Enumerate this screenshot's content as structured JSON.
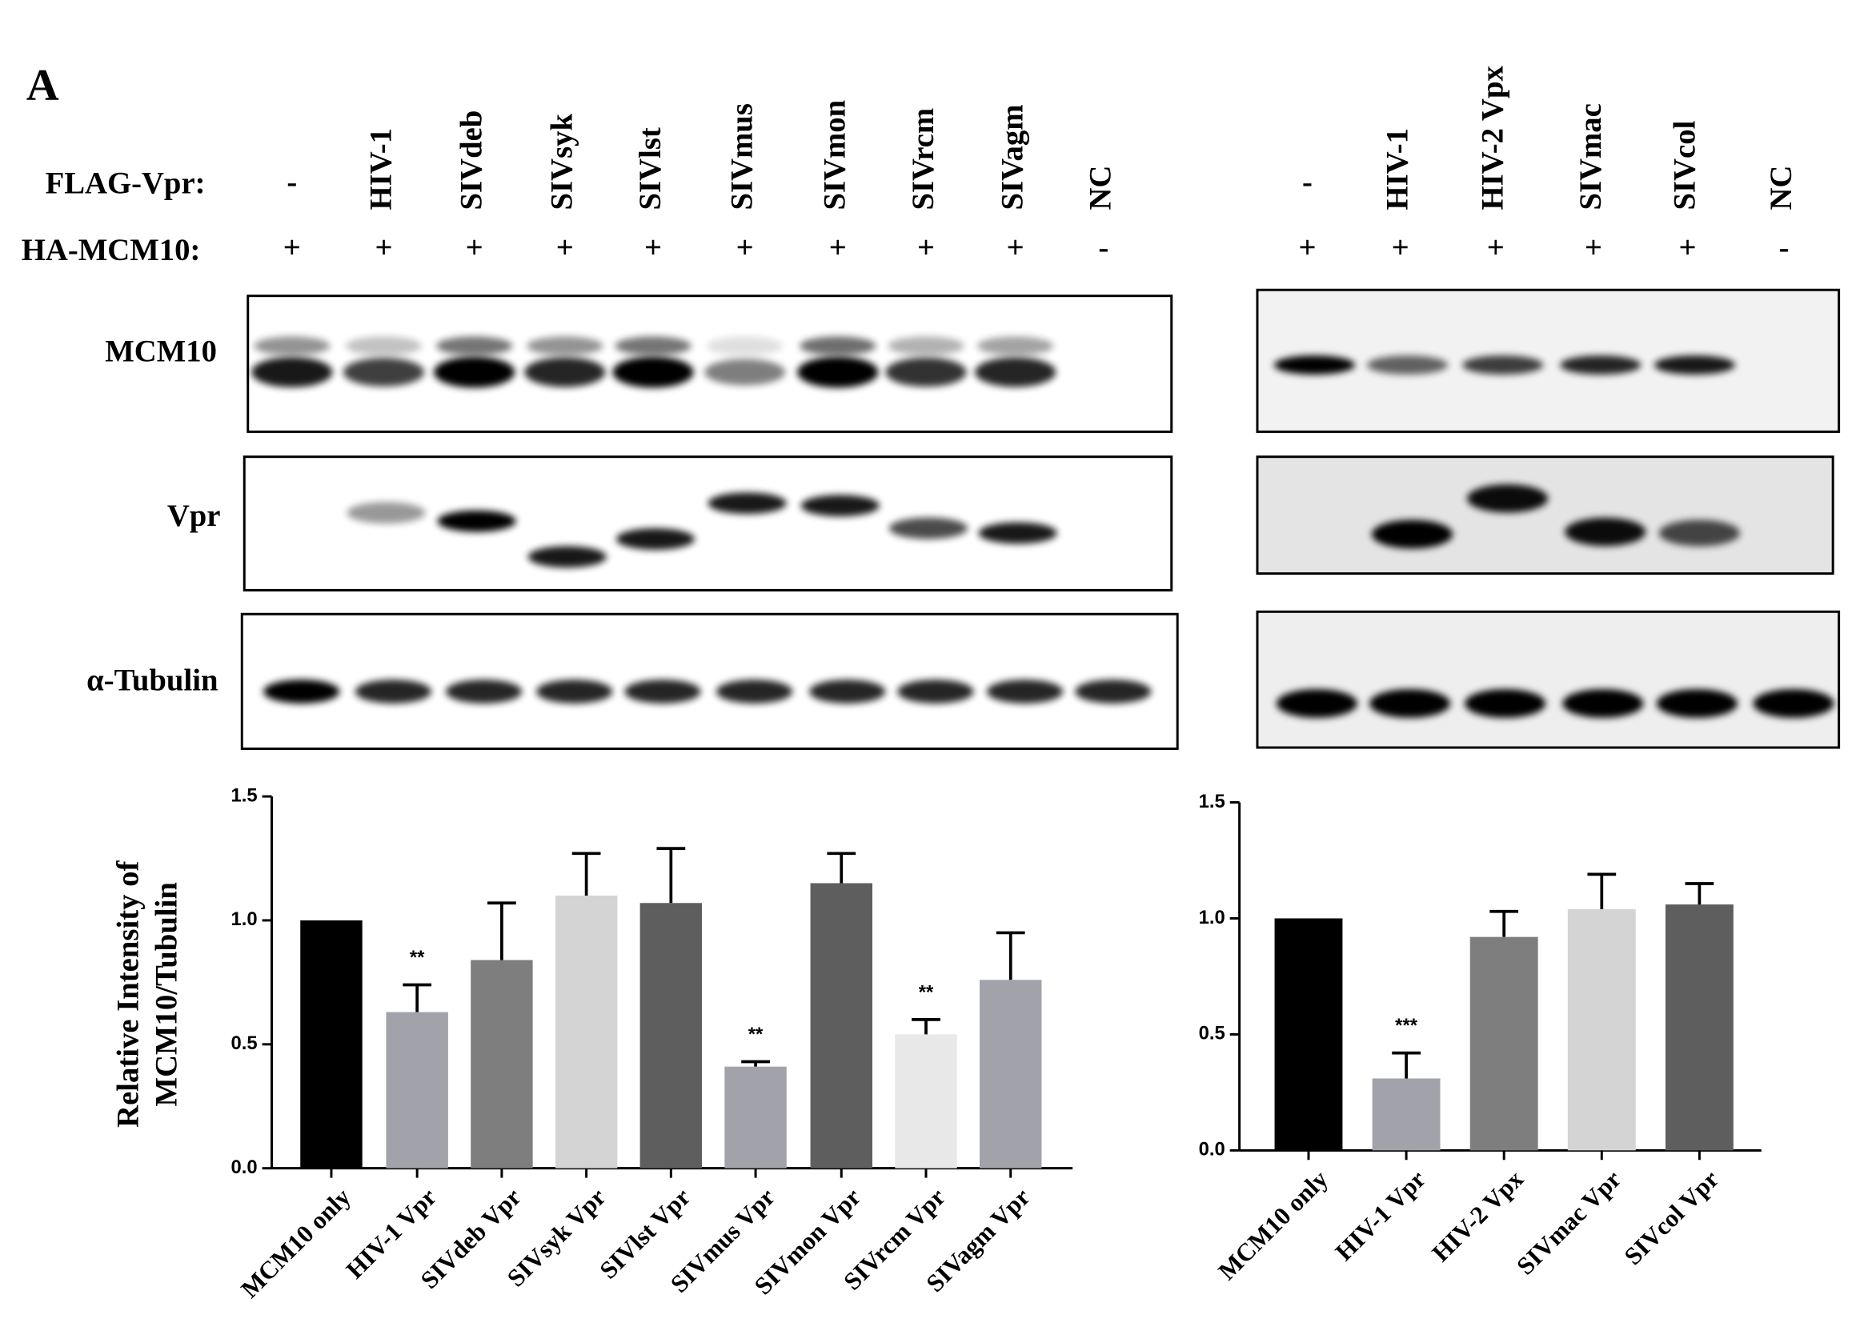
{
  "panel_label": "A",
  "blot": {
    "left": {
      "flag_label": "FLAG-Vpr:",
      "ha_label": "HA-MCM10:",
      "flag_lanes": [
        "-",
        "HIV-1",
        "SIVdeb",
        "SIVsyk",
        "SIVlst",
        "SIVmus",
        "SIVmon",
        "SIVrcm",
        "SIVagm",
        "NC"
      ],
      "ha_lanes": [
        "+",
        "+",
        "+",
        "+",
        "+",
        "+",
        "+",
        "+",
        "+",
        "-"
      ]
    },
    "right": {
      "flag_lanes": [
        "-",
        "HIV-1",
        "HIV-2  Vpx",
        "SIVmac",
        "SIVcol",
        "NC"
      ],
      "ha_lanes": [
        "+",
        "+",
        "+",
        "+",
        "+",
        "-"
      ]
    },
    "row_labels": [
      "MCM10",
      "Vpr",
      "α-Tubulin"
    ]
  },
  "chart_data": [
    {
      "type": "bar",
      "y_label": [
        "Relative Intensity of",
        "MCM10/Tubulin"
      ],
      "categories": [
        "MCM10 only",
        "HIV-1 Vpr",
        "SIVdeb Vpr",
        "SIVsyk Vpr",
        "SIVlst Vpr",
        "SIVmus Vpr",
        "SIVmon Vpr",
        "SIVrcm Vpr",
        "SIVagm Vpr"
      ],
      "values": [
        1.0,
        0.63,
        0.84,
        1.1,
        1.07,
        0.41,
        1.15,
        0.54,
        0.76
      ],
      "errors": [
        null,
        0.11,
        0.23,
        0.17,
        0.22,
        0.02,
        0.12,
        0.06,
        0.19
      ],
      "annotations": [
        null,
        "**",
        null,
        null,
        null,
        "**",
        null,
        "**",
        null
      ],
      "colors": [
        "#000000",
        "#a2a2aa",
        "#7e7e7e",
        "#d4d4d4",
        "#5e5e5e",
        "#a2a2aa",
        "#5e5e5e",
        "#e8e8e8",
        "#a2a2aa"
      ],
      "ylim": [
        0,
        1.5
      ],
      "yticks": [
        {
          "value": 0,
          "label": "0.0"
        },
        {
          "value": 0.5,
          "label": "0.5"
        },
        {
          "value": 1,
          "label": "1.0"
        },
        {
          "value": 1.5,
          "label": "1.5"
        }
      ]
    },
    {
      "type": "bar",
      "categories": [
        "MCM10 only",
        "HIV-1 Vpr",
        "HIV-2 Vpx",
        "SIVmac Vpr",
        "SIVcol Vpr"
      ],
      "values": [
        1.0,
        0.31,
        0.92,
        1.04,
        1.06
      ],
      "errors": [
        null,
        0.11,
        0.11,
        0.15,
        0.09
      ],
      "annotations": [
        null,
        "***",
        null,
        null,
        null
      ],
      "colors": [
        "#000000",
        "#a2a2aa",
        "#7e7e7e",
        "#d4d4d4",
        "#5e5e5e"
      ],
      "ylim": [
        0,
        1.5
      ],
      "yticks": [
        {
          "value": 0,
          "label": "0.0"
        },
        {
          "value": 0.5,
          "label": "0.5"
        },
        {
          "value": 1,
          "label": "1.0"
        },
        {
          "value": 1.5,
          "label": "1.5"
        }
      ]
    }
  ]
}
